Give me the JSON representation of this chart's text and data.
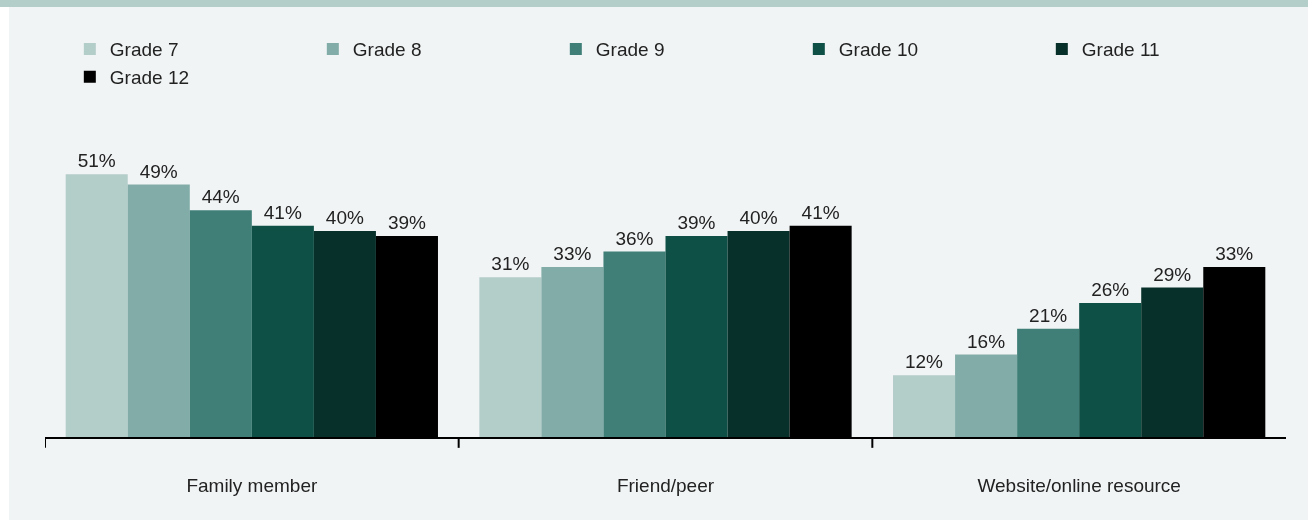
{
  "chart_data": {
    "type": "bar",
    "categories": [
      "Family member",
      "Friend/peer",
      "Website/online resource"
    ],
    "series": [
      {
        "name": "Grade 7",
        "color": "#b3cdc9",
        "values": [
          51,
          31,
          12
        ],
        "value_labels": [
          "51%",
          "31%",
          "12%"
        ]
      },
      {
        "name": "Grade 8",
        "color": "#81aca7",
        "values": [
          49,
          33,
          16
        ],
        "value_labels": [
          "49%",
          "33%",
          "16%"
        ]
      },
      {
        "name": "Grade 9",
        "color": "#3f7f78",
        "values": [
          44,
          36,
          21
        ],
        "value_labels": [
          "44%",
          "36%",
          "21%"
        ]
      },
      {
        "name": "Grade 10",
        "color": "#0f5046",
        "values": [
          41,
          39,
          26
        ],
        "value_labels": [
          "41%",
          "39%",
          "26%"
        ]
      },
      {
        "name": "Grade 11",
        "color": "#07302a",
        "values": [
          40,
          40,
          29
        ],
        "value_labels": [
          "40%",
          "40%",
          "29%"
        ]
      },
      {
        "name": "Grade 12",
        "color": "#000000",
        "values": [
          39,
          41,
          33
        ],
        "value_labels": [
          "39%",
          "41%",
          "33%"
        ]
      }
    ],
    "legend": "top"
  }
}
